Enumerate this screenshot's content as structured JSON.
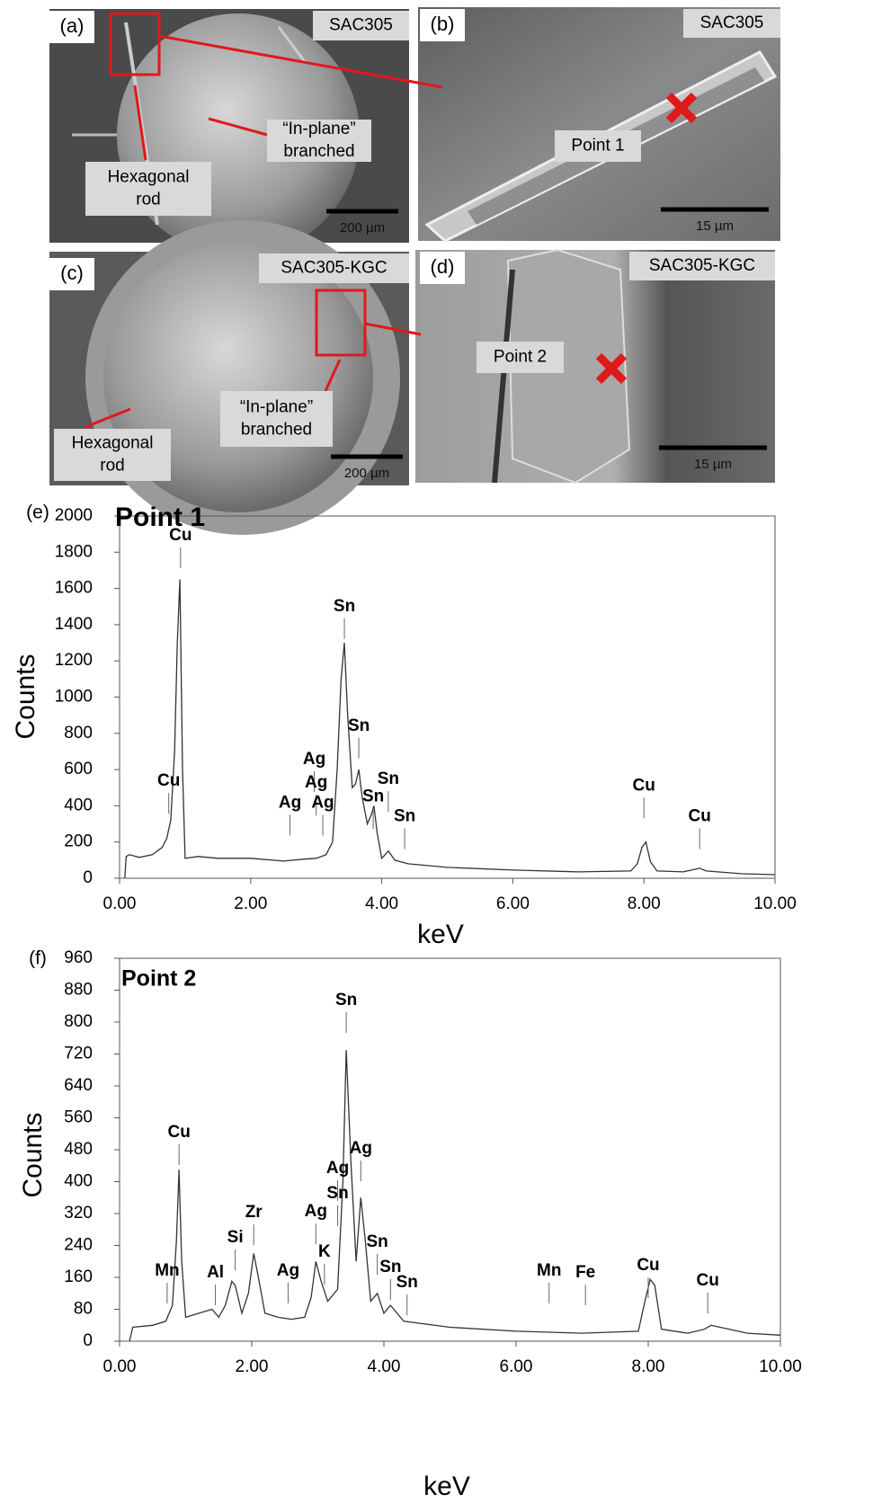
{
  "panels": [
    {
      "label": "(a)",
      "tag": "SAC305",
      "scale": "200 µm",
      "notes": [
        [
          "Hexagonal",
          "rod"
        ],
        [
          "“In-plane”",
          "branched"
        ]
      ]
    },
    {
      "label": "(b)",
      "tag": "SAC305",
      "scale": "15 µm",
      "notes": [
        [
          "Point 1"
        ]
      ]
    },
    {
      "label": "(c)",
      "tag": "SAC305-KGC",
      "scale": "200 µm",
      "notes": [
        [
          "Hexagonal",
          "rod"
        ],
        [
          "“In-plane”",
          "branched"
        ]
      ]
    },
    {
      "label": "(d)",
      "tag": "SAC305-KGC",
      "scale": "15 µm",
      "notes": [
        [
          "Point 2"
        ]
      ]
    }
  ],
  "chart_data": [
    {
      "type": "line",
      "panel_label": "(e)",
      "title": "Point 1",
      "x_label": "keV",
      "y_label": "Counts",
      "color": "#333333",
      "xlim": [
        0,
        10
      ],
      "ylim": [
        0,
        2000
      ],
      "xticks": [
        {
          "value": 0,
          "label": "0.00"
        },
        {
          "value": 2,
          "label": "2.00"
        },
        {
          "value": 4,
          "label": "4.00"
        },
        {
          "value": 6,
          "label": "6.00"
        },
        {
          "value": 8,
          "label": "8.00"
        },
        {
          "value": 10,
          "label": "10.00"
        }
      ],
      "yticks": [
        0,
        200,
        400,
        600,
        800,
        1000,
        1200,
        1400,
        1600,
        1800,
        2000
      ],
      "x": [
        0.08,
        0.1,
        0.15,
        0.3,
        0.5,
        0.65,
        0.72,
        0.78,
        0.84,
        0.88,
        0.92,
        0.96,
        1.0,
        1.2,
        1.5,
        2.0,
        2.5,
        2.8,
        3.0,
        3.15,
        3.25,
        3.32,
        3.38,
        3.43,
        3.48,
        3.55,
        3.6,
        3.65,
        3.7,
        3.78,
        3.84,
        3.88,
        3.93,
        4.0,
        4.1,
        4.2,
        4.4,
        5.0,
        6.0,
        7.0,
        7.8,
        7.9,
        7.97,
        8.03,
        8.1,
        8.2,
        8.6,
        8.85,
        8.95,
        9.5,
        10.0
      ],
      "values": [
        0,
        120,
        130,
        115,
        130,
        170,
        220,
        320,
        700,
        1300,
        1650,
        600,
        110,
        120,
        110,
        110,
        95,
        105,
        110,
        130,
        200,
        600,
        1100,
        1300,
        900,
        500,
        520,
        600,
        450,
        300,
        350,
        400,
        250,
        110,
        150,
        100,
        80,
        60,
        45,
        35,
        40,
        80,
        170,
        200,
        90,
        40,
        35,
        55,
        40,
        25,
        20
      ],
      "peak_labels": [
        {
          "text": "Cu",
          "x": 0.93,
          "y": 1890
        },
        {
          "text": "Cu",
          "x": 0.75,
          "y": 535
        },
        {
          "text": "Ag",
          "x": 2.6,
          "y": 415
        },
        {
          "text": "Ag",
          "x": 2.97,
          "y": 655
        },
        {
          "text": "Ag",
          "x": 3.0,
          "y": 525
        },
        {
          "text": "Ag",
          "x": 3.1,
          "y": 415
        },
        {
          "text": "Sn",
          "x": 3.43,
          "y": 1500
        },
        {
          "text": "Sn",
          "x": 3.65,
          "y": 840
        },
        {
          "text": "Sn",
          "x": 3.87,
          "y": 450
        },
        {
          "text": "Sn",
          "x": 4.1,
          "y": 545
        },
        {
          "text": "Sn",
          "x": 4.35,
          "y": 340
        },
        {
          "text": "Cu",
          "x": 8.0,
          "y": 510
        },
        {
          "text": "Cu",
          "x": 8.85,
          "y": 340
        }
      ]
    },
    {
      "type": "line",
      "panel_label": "(f)",
      "title": "Point 2",
      "x_label": "keV",
      "y_label": "Counts",
      "color": "#333333",
      "xlim": [
        0,
        10
      ],
      "ylim": [
        0,
        960
      ],
      "xticks": [
        {
          "value": 0,
          "label": "0.00"
        },
        {
          "value": 2,
          "label": "2.00"
        },
        {
          "value": 4,
          "label": "4.00"
        },
        {
          "value": 6,
          "label": "6.00"
        },
        {
          "value": 8,
          "label": "8.00"
        },
        {
          "value": 10,
          "label": "10.00"
        }
      ],
      "yticks": [
        0,
        80,
        160,
        240,
        320,
        400,
        480,
        560,
        640,
        720,
        800,
        880,
        960
      ],
      "x": [
        0.15,
        0.2,
        0.5,
        0.7,
        0.8,
        0.86,
        0.9,
        0.94,
        1.0,
        1.2,
        1.4,
        1.5,
        1.6,
        1.7,
        1.75,
        1.85,
        1.95,
        2.03,
        2.1,
        2.2,
        2.4,
        2.6,
        2.8,
        2.9,
        2.97,
        3.05,
        3.15,
        3.3,
        3.38,
        3.43,
        3.5,
        3.58,
        3.65,
        3.72,
        3.8,
        3.9,
        4.0,
        4.1,
        4.3,
        5.0,
        6.0,
        7.0,
        7.85,
        7.95,
        8.03,
        8.1,
        8.2,
        8.6,
        8.85,
        8.95,
        9.5,
        10.0
      ],
      "values": [
        0,
        35,
        40,
        50,
        90,
        250,
        430,
        200,
        60,
        70,
        80,
        60,
        90,
        150,
        140,
        70,
        120,
        220,
        160,
        70,
        60,
        55,
        60,
        110,
        200,
        150,
        100,
        130,
        400,
        730,
        450,
        200,
        360,
        250,
        100,
        120,
        70,
        90,
        50,
        35,
        25,
        20,
        25,
        100,
        155,
        140,
        30,
        20,
        30,
        40,
        20,
        15
      ],
      "peak_labels": [
        {
          "text": "Mn",
          "x": 0.72,
          "y": 176
        },
        {
          "text": "Cu",
          "x": 0.9,
          "y": 523
        },
        {
          "text": "Al",
          "x": 1.45,
          "y": 171
        },
        {
          "text": "Si",
          "x": 1.75,
          "y": 259
        },
        {
          "text": "Zr",
          "x": 2.03,
          "y": 322
        },
        {
          "text": "Ag",
          "x": 2.55,
          "y": 176
        },
        {
          "text": "Ag",
          "x": 2.97,
          "y": 324
        },
        {
          "text": "Sn",
          "x": 3.3,
          "y": 370
        },
        {
          "text": "Ag",
          "x": 3.3,
          "y": 433
        },
        {
          "text": "K",
          "x": 3.1,
          "y": 223
        },
        {
          "text": "Sn",
          "x": 3.43,
          "y": 854
        },
        {
          "text": "Ag",
          "x": 3.65,
          "y": 482
        },
        {
          "text": "Sn",
          "x": 3.9,
          "y": 248
        },
        {
          "text": "Sn",
          "x": 4.1,
          "y": 185
        },
        {
          "text": "Sn",
          "x": 4.35,
          "y": 146
        },
        {
          "text": "Mn",
          "x": 6.5,
          "y": 176
        },
        {
          "text": "Fe",
          "x": 7.05,
          "y": 171
        },
        {
          "text": "Cu",
          "x": 8.0,
          "y": 189
        },
        {
          "text": "Cu",
          "x": 8.9,
          "y": 151
        }
      ]
    }
  ]
}
